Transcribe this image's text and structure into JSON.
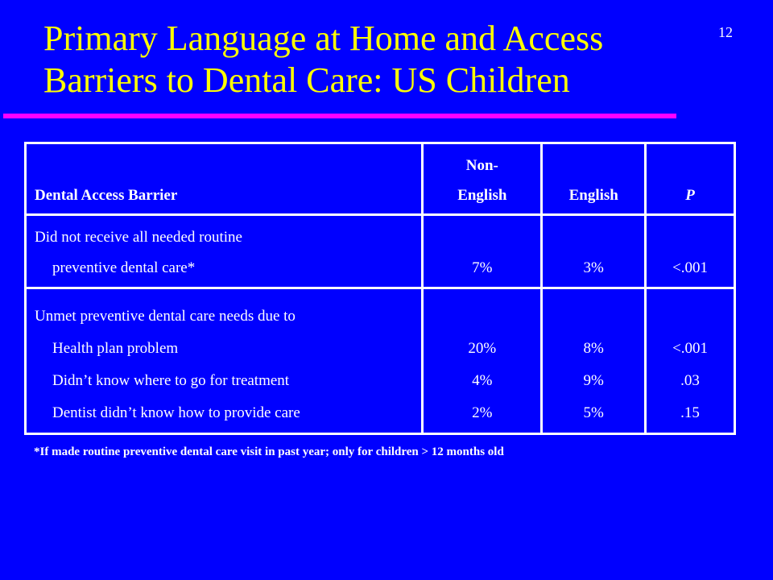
{
  "slide_number": "12",
  "title": {
    "line1": "Primary Language at Home and Access",
    "line2": "Barriers to Dental Care: US Children"
  },
  "colors": {
    "background": "#0000ff",
    "title": "#ffff00",
    "rule": "#ff00ff",
    "text": "#ffffff"
  },
  "table": {
    "headers": {
      "barrier": "Dental Access Barrier",
      "non_english_line1": "Non-",
      "non_english_line2": "English",
      "english": "English",
      "p": "P"
    },
    "row1": {
      "label_line1": "Did not receive all needed routine",
      "label_line2": "preventive dental care*",
      "non_english": "7%",
      "english": "3%",
      "p": "<.001"
    },
    "row2": {
      "label_heading": "Unmet preventive dental care needs due to",
      "items": [
        {
          "label": "Health plan problem",
          "non_english": "20%",
          "english": "8%",
          "p": "<.001"
        },
        {
          "label": "Didn’t know where to go for treatment",
          "non_english": "4%",
          "english": "9%",
          "p": ".03"
        },
        {
          "label": "Dentist didn’t know how to provide care",
          "non_english": "2%",
          "english": "5%",
          "p": ".15"
        }
      ]
    }
  },
  "footnote": "*If made routine preventive dental care visit in past year; only for children > 12 months old"
}
